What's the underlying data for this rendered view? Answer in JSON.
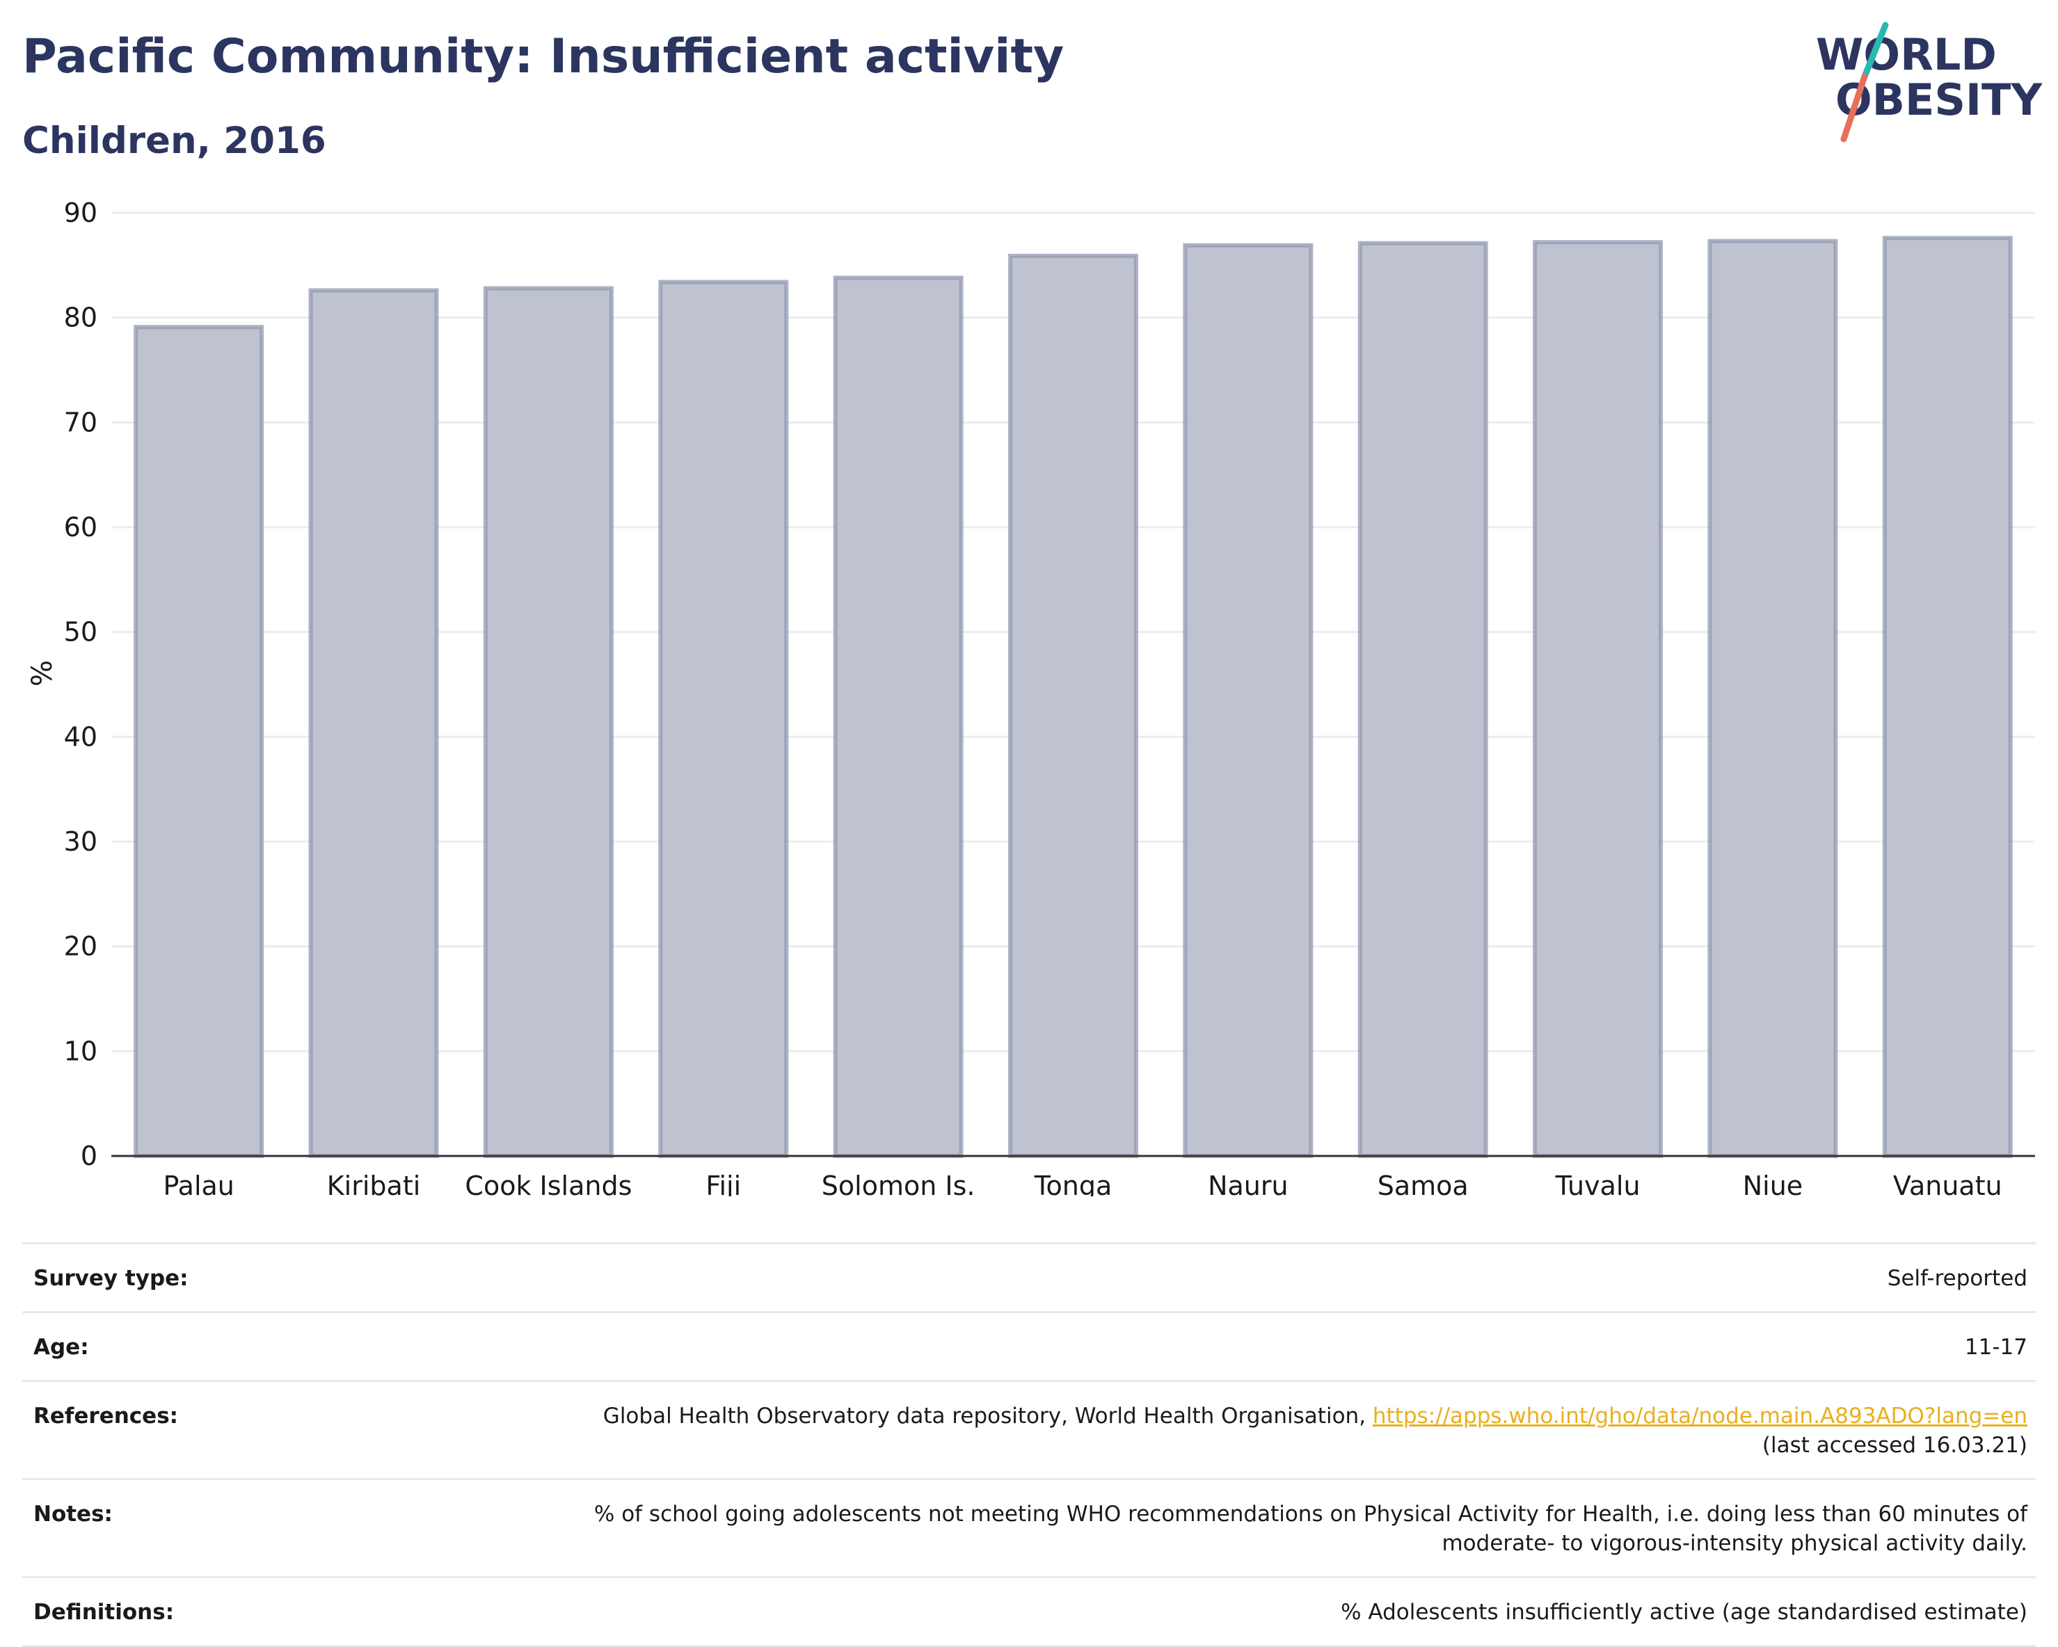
{
  "header": {
    "title": "Pacific Community: Insufficient activity",
    "subtitle": "Children, 2016"
  },
  "logo": {
    "line1": "WORLD",
    "line2": "OBESITY",
    "colors": {
      "text": "#2c3560",
      "slash_top": "#2bb8b0",
      "slash_bottom": "#e8705a"
    }
  },
  "chart_data": {
    "type": "bar",
    "title": "Pacific Community: Insufficient activity",
    "subtitle": "Children, 2016",
    "xlabel": "",
    "ylabel": "%",
    "ylim": [
      0,
      90
    ],
    "yticks": [
      0,
      10,
      20,
      30,
      40,
      50,
      60,
      70,
      80,
      90
    ],
    "grid": true,
    "categories": [
      "Palau",
      "Kiribati",
      "Cook Islands",
      "Fiji",
      "Solomon Is.",
      "Tonga",
      "Nauru",
      "Samoa",
      "Tuvalu",
      "Niue",
      "Vanuatu"
    ],
    "values": [
      79.1,
      82.6,
      82.8,
      83.4,
      83.8,
      85.9,
      86.9,
      87.1,
      87.2,
      87.3,
      87.6
    ],
    "colors": {
      "bar_fill": "#bfc2cf",
      "bar_stroke": "#9299b1",
      "grid": "#ececf0",
      "axis": "#333333"
    }
  },
  "info": {
    "survey_type": {
      "label": "Survey type:",
      "value": "Self-reported"
    },
    "age": {
      "label": "Age:",
      "value": "11-17"
    },
    "references": {
      "label": "References:",
      "text": "Global Health Observatory data repository, World Health Organisation, ",
      "link": "https://apps.who.int/gho/data/node.main.A893ADO?lang=en",
      "suffix": "(last accessed 16.03.21)"
    },
    "notes": {
      "label": "Notes:",
      "value": "% of school going adolescents not meeting WHO recommendations on Physical Activity for Health, i.e. doing less than 60 minutes of moderate- to vigorous-intensity physical activity daily."
    },
    "definitions": {
      "label": "Definitions:",
      "value": "% Adolescents insufficiently active (age standardised estimate)"
    }
  }
}
